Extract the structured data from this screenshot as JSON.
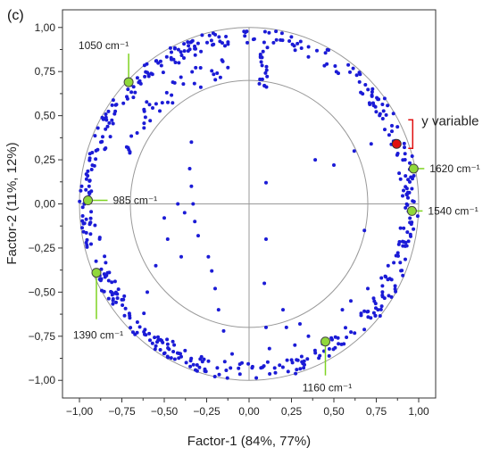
{
  "chart_data": {
    "type": "scatter",
    "panel_label": "(c)",
    "xlabel": "Factor-1 (84%, 77%)",
    "ylabel": "Factor-2 (11%, 12%)",
    "xlim": [
      -1.1,
      1.1
    ],
    "ylim": [
      -1.1,
      1.1
    ],
    "x_ticks": [
      -1.0,
      -0.75,
      -0.5,
      -0.25,
      0.0,
      0.25,
      0.5,
      0.75,
      1.0
    ],
    "x_tick_labels": [
      "−1,00",
      "−0,75",
      "−0,50",
      "−0,25",
      "0,00",
      "0,25",
      "0,50",
      "0,75",
      "1,00"
    ],
    "y_ticks": [
      1.0,
      0.75,
      0.5,
      0.25,
      0.0,
      -0.25,
      -0.5,
      -0.75,
      -1.0
    ],
    "y_tick_labels": [
      "1,00",
      "0,75",
      "0,50",
      "0,25",
      "0,00",
      "−0,25",
      "−0,50",
      "−0,75",
      "−1,00"
    ],
    "circles": [
      1.0,
      0.7
    ],
    "colors": {
      "points": "#1b1bd6",
      "highlight": "#90d83a",
      "y_variable": "#e01010",
      "circle": "#999999",
      "leader": "#7ed321",
      "bracket": "#e01010"
    },
    "highlight_points": [
      {
        "x": -0.71,
        "y": 0.69,
        "label": "1050 cm⁻¹"
      },
      {
        "x": -0.95,
        "y": 0.02,
        "label": "985 cm⁻¹"
      },
      {
        "x": -0.9,
        "y": -0.39,
        "label": "1390 cm⁻¹"
      },
      {
        "x": 0.45,
        "y": -0.78,
        "label": "1160 cm⁻¹"
      },
      {
        "x": 0.97,
        "y": 0.2,
        "label": "1620 cm⁻¹"
      },
      {
        "x": 0.96,
        "y": -0.04,
        "label": "1540 cm⁻¹"
      }
    ],
    "y_variable": {
      "x": 0.87,
      "y": 0.34,
      "label": "y variable"
    }
  }
}
